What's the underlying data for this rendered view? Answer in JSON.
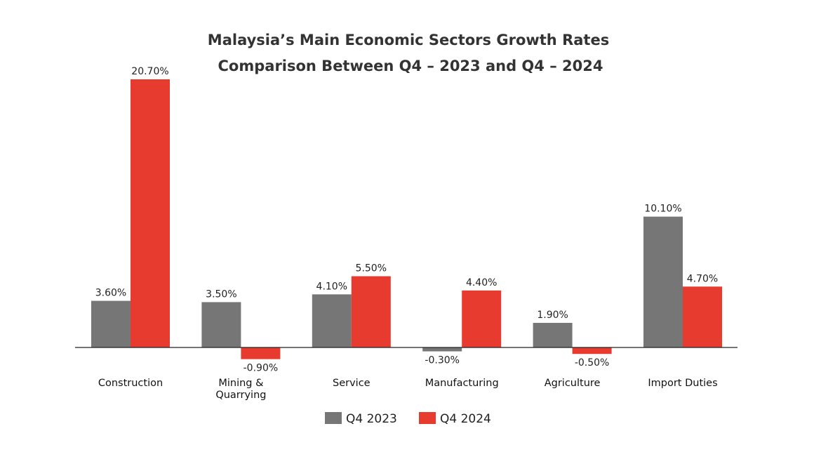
{
  "chart_data": {
    "type": "bar",
    "title": [
      "Malaysia’s Main Economic Sectors Growth Rates",
      "Comparison Between Q4 – 2023 and Q4 – 2024"
    ],
    "categories": [
      [
        "Construction"
      ],
      [
        "Mining &",
        "Quarrying"
      ],
      [
        "Service"
      ],
      [
        "Manufacturing"
      ],
      [
        "Agriculture"
      ],
      [
        "Import Duties"
      ]
    ],
    "series": [
      {
        "name": "Q4 2023",
        "color": "#767676",
        "values": [
          3.6,
          3.5,
          4.1,
          -0.3,
          1.9,
          10.1
        ],
        "labels": [
          "3.60%",
          "3.50%",
          "4.10%",
          "-0.30%",
          "1.90%",
          "10.10%"
        ]
      },
      {
        "name": "Q4 2024",
        "color": "#e63b2e",
        "values": [
          20.7,
          -0.9,
          5.5,
          4.4,
          -0.5,
          4.7
        ],
        "labels": [
          "20.70%",
          "-0.90%",
          "5.50%",
          "4.40%",
          "-0.50%",
          "4.70%"
        ]
      }
    ],
    "xlabel": "",
    "ylabel": "",
    "grid": false,
    "y_axis_shown": false,
    "legend": "bottom"
  }
}
